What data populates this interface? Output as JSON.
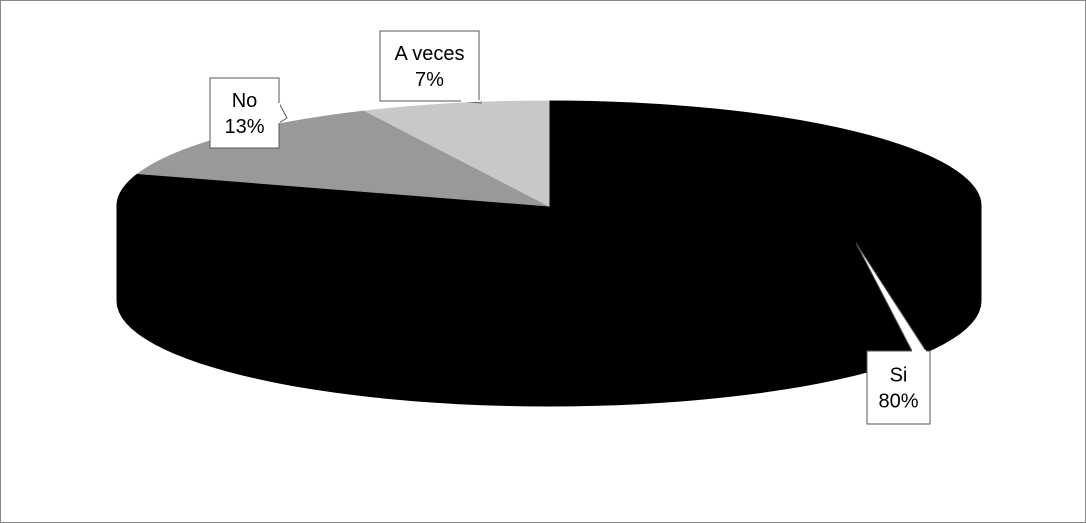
{
  "chart_data": {
    "type": "pie",
    "style": "3d",
    "categories": [
      "Si",
      "No",
      "A veces"
    ],
    "values": [
      80,
      13,
      7
    ],
    "percent_labels": [
      "80%",
      "13%",
      "7%"
    ],
    "colors": [
      "#000000",
      "#999999",
      "#c8c8c8"
    ],
    "title": "",
    "legend": "none"
  }
}
